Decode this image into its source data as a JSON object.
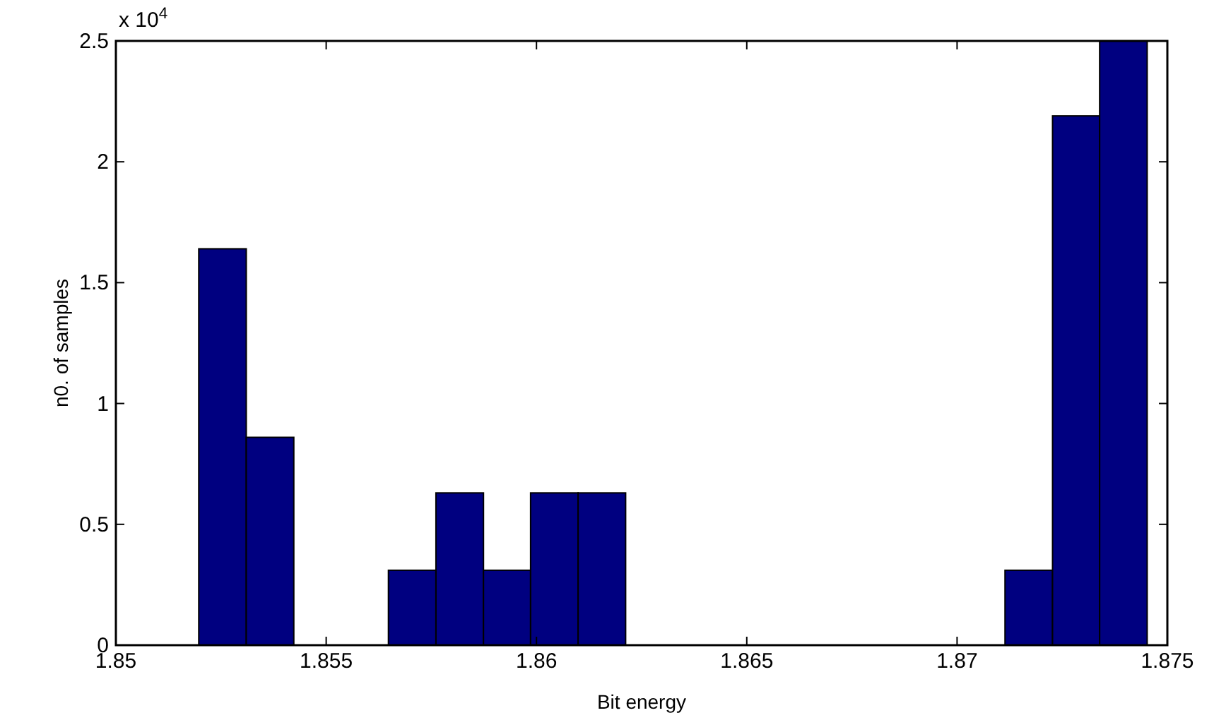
{
  "chart_data": {
    "type": "histogram",
    "xlabel": "Bit energy",
    "ylabel": "n0. of samples",
    "annotations": [
      "x 10$^{4}$"
    ],
    "bins": [
      1.85197,
      1.8531,
      1.85423,
      1.85648,
      1.85761,
      1.85874,
      1.85986,
      1.86099,
      1.86212,
      1.87114,
      1.87227,
      1.87339,
      1.87452
    ],
    "values": [
      1.64,
      0.86,
      0,
      0.31,
      0.63,
      0.31,
      0.63,
      0.63,
      0,
      0.31,
      2.19,
      2.5
    ],
    "color": "#000080",
    "xlim": [
      1.85,
      1.875
    ],
    "xticks": [
      1.85,
      1.855,
      1.86,
      1.865,
      1.87,
      1.875
    ],
    "ylim": [
      0,
      2.5
    ],
    "yticks": [
      0,
      0.5,
      1,
      1.5,
      2,
      2.5
    ],
    "grid": false
  }
}
